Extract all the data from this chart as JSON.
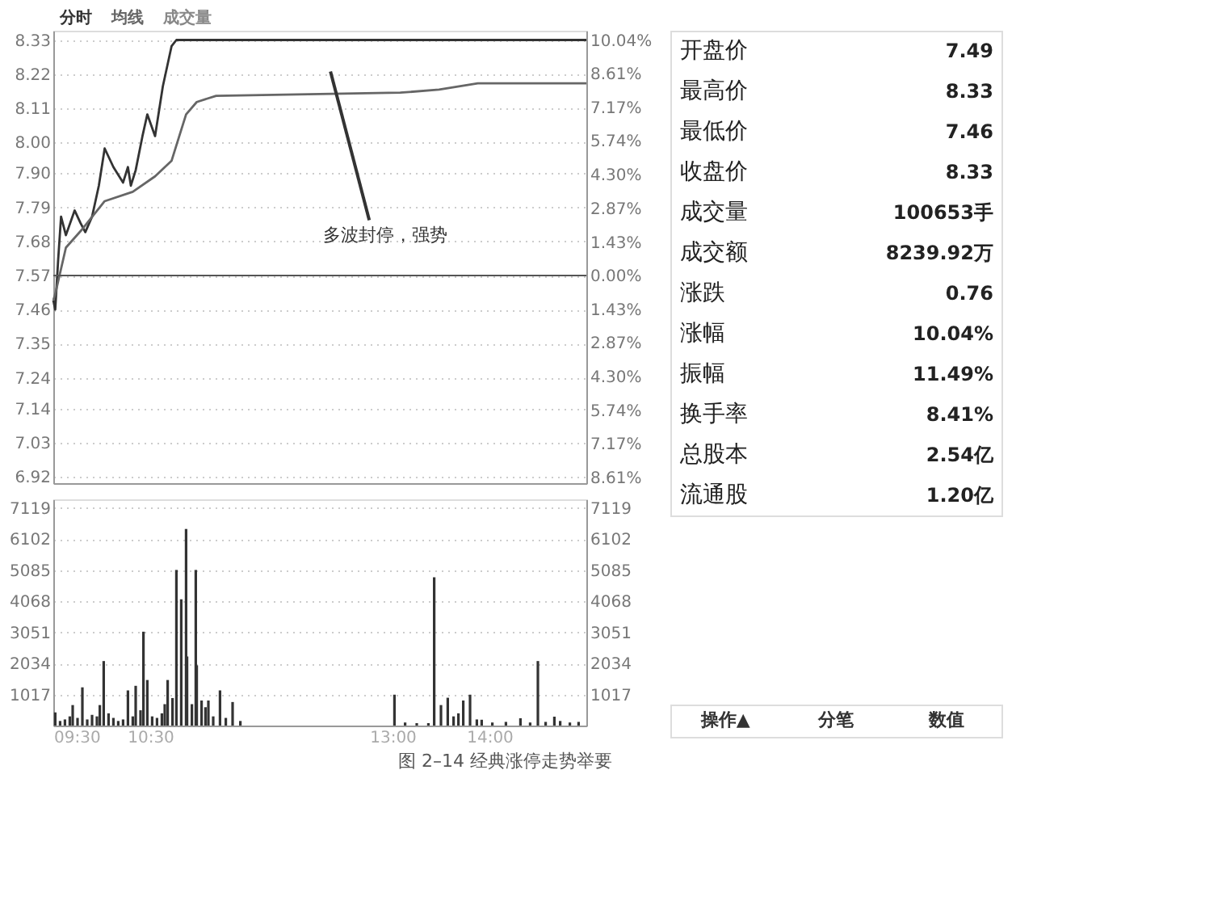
{
  "chart_data": [
    {
      "type": "line",
      "legend": "top left",
      "grid": "y",
      "marker": "none",
      "line_style": "solid",
      "tick_labels": "y",
      "series": [
        {
          "name": "分时",
          "color": "#333333",
          "x": [
            9.5,
            9.52,
            9.55,
            9.58,
            9.63,
            9.72,
            9.78,
            9.83,
            9.9,
            9.97,
            10.03,
            10.12,
            10.22,
            10.27,
            10.3,
            10.35,
            10.42,
            10.47,
            10.55,
            10.63,
            10.72,
            10.77,
            15.0
          ],
          "values": [
            7.49,
            7.46,
            7.62,
            7.76,
            7.7,
            7.78,
            7.74,
            7.71,
            7.76,
            7.86,
            7.98,
            7.92,
            7.87,
            7.92,
            7.86,
            7.91,
            8.02,
            8.09,
            8.02,
            8.18,
            8.31,
            8.33,
            8.33
          ]
        },
        {
          "name": "均线",
          "color": "#666666",
          "x": [
            9.5,
            9.52,
            9.63,
            9.8,
            10.03,
            10.32,
            10.55,
            10.72,
            10.8,
            10.87,
            10.98,
            11.18,
            13.08,
            13.48,
            13.88,
            15.0
          ],
          "values": [
            7.49,
            7.51,
            7.66,
            7.72,
            7.81,
            7.84,
            7.89,
            7.94,
            8.02,
            8.09,
            8.13,
            8.15,
            8.16,
            8.17,
            8.19,
            8.19
          ]
        }
      ],
      "xlim": [
        9.5,
        15.0
      ],
      "ylim": [
        6.9,
        8.36
      ],
      "yticks": [
        8.33,
        8.22,
        8.11,
        {
          "value": 8.0,
          "label": "8.00"
        },
        {
          "value": 7.9,
          "label": "7.90"
        },
        7.79,
        7.68,
        7.57,
        7.46,
        7.35,
        7.24,
        7.14,
        7.03,
        6.92
      ],
      "y2lim": [
        -8.85,
        10.44
      ],
      "y2ticks": [
        {
          "value": 10.04,
          "label": "10.04%"
        },
        {
          "value": 8.61,
          "label": "8.61%"
        },
        {
          "value": 7.17,
          "label": "7.17%"
        },
        {
          "value": 5.74,
          "label": "5.74%"
        },
        {
          "value": 4.3,
          "label": "4.30%"
        },
        {
          "value": 2.87,
          "label": "2.87%"
        },
        {
          "value": 1.43,
          "label": "1.43%"
        },
        {
          "value": 0,
          "label": "0.00%"
        },
        {
          "value": -1.43,
          "label": "1.43%"
        },
        {
          "value": -2.87,
          "label": "2.87%"
        },
        {
          "value": -4.3,
          "label": "4.30%"
        },
        {
          "value": -5.74,
          "label": "5.74%"
        },
        {
          "value": -7.17,
          "label": "7.17%"
        },
        {
          "value": -8.61,
          "label": "8.61%"
        }
      ],
      "ref_lines": [
        {
          "axis": "y",
          "value": 7.57,
          "color": "#555555"
        }
      ],
      "annotations": [
        "多波封停，强势",
        "图 2–14  经典涨停走势举要"
      ]
    },
    {
      "type": "bar",
      "legend": "top left",
      "grid": "y",
      "series": [
        {
          "name": "成交量",
          "color": "#333333",
          "x": [
            9.52,
            9.57,
            9.62,
            9.67,
            9.7,
            9.75,
            9.8,
            9.85,
            9.9,
            9.95,
            9.98,
            10.02,
            10.07,
            10.12,
            10.17,
            10.22,
            10.27,
            10.32,
            10.35,
            10.4,
            10.43,
            10.47,
            10.52,
            10.57,
            10.62,
            10.65,
            10.68,
            10.73,
            10.77,
            10.82,
            10.87,
            10.88,
            10.93,
            10.97,
            10.98,
            11.03,
            11.07,
            11.1,
            11.15,
            11.22,
            11.28,
            11.35,
            11.43,
            13.02,
            13.13,
            13.25,
            13.37,
            13.43,
            13.5,
            13.57,
            13.63,
            13.68,
            13.73,
            13.8,
            13.87,
            13.92,
            14.03,
            14.17,
            14.32,
            14.42,
            14.5,
            14.58,
            14.67,
            14.73,
            14.83,
            14.92
          ],
          "values": [
            430,
            150,
            200,
            300,
            670,
            250,
            1250,
            200,
            350,
            300,
            670,
            2110,
            400,
            250,
            150,
            200,
            1150,
            300,
            1300,
            500,
            3070,
            1490,
            300,
            250,
            400,
            700,
            1490,
            900,
            5090,
            4130,
            6430,
            2260,
            700,
            5090,
            1970,
            820,
            600,
            820,
            300,
            1150,
            250,
            770,
            150,
            1010,
            100,
            80,
            80,
            4850,
            670,
            910,
            300,
            400,
            820,
            1010,
            200,
            190,
            100,
            120,
            240,
            100,
            2110,
            120,
            290,
            150,
            100,
            120
          ]
        }
      ],
      "xlim": [
        9.5,
        15.0
      ],
      "xticks": [
        {
          "value": 9.5,
          "label": "09:30"
        },
        {
          "value": 10.5,
          "label": "10:30"
        },
        {
          "value": 13,
          "label": "13:00"
        },
        {
          "value": 14,
          "label": "14:00"
        }
      ],
      "ylim": [
        0,
        7400
      ],
      "yticks": [
        7119,
        6102,
        5085,
        4068,
        3051,
        2034,
        1017
      ],
      "y2lim": [
        0,
        7400
      ],
      "y2ticks": [
        7119,
        6102,
        5085,
        4068,
        3051,
        2034,
        1017
      ]
    },
    {
      "type": "other",
      "categories": [
        "开盘价",
        "最高价",
        "最低价",
        "收盘价",
        "成交量",
        "成交额",
        "涨跌",
        "涨幅",
        "振幅",
        "换手率",
        "总股本",
        "流通股"
      ],
      "value_labels": [
        "7.49",
        "8.33",
        "7.46",
        "8.33",
        "100653手",
        "8239.92万",
        "0.76",
        "10.04%",
        "11.49%",
        "8.41%",
        "2.54亿",
        "1.20亿"
      ],
      "annotations": [
        "操作▲",
        "分笔",
        "数值"
      ]
    }
  ]
}
